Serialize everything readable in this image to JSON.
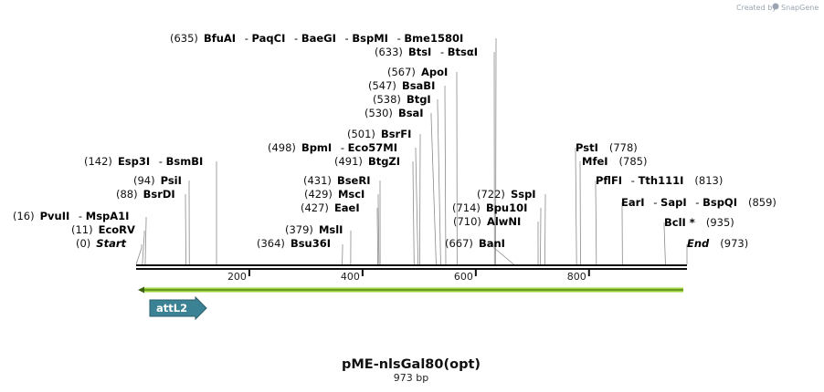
{
  "header": {
    "credit": "Created by",
    "brand": "SnapGene"
  },
  "plasmid": {
    "name": "pME-nlsGal80(opt)",
    "length_label": "973 bp",
    "length": 973
  },
  "ruler": {
    "ticks": [
      "200",
      "400",
      "600",
      "800"
    ]
  },
  "features": [
    {
      "name": "attL2",
      "start": 25,
      "end": 135,
      "direction": "forward",
      "color": "#3c8295"
    }
  ],
  "primer_arrow": {
    "direction": "reverse",
    "color": "#9bd43b"
  },
  "sites": [
    {
      "pos_label": "(0)",
      "names": [
        "Start"
      ],
      "italic": true
    },
    {
      "pos_label": "(11)",
      "names": [
        "EcoRV"
      ]
    },
    {
      "pos_label": "(16)",
      "names": [
        "PvuII",
        "MspA1I"
      ]
    },
    {
      "pos_label": "(88)",
      "names": [
        "BsrDI"
      ]
    },
    {
      "pos_label": "(94)",
      "names": [
        "PsiI"
      ]
    },
    {
      "pos_label": "(142)",
      "names": [
        "Esp3I",
        "BsmBI"
      ]
    },
    {
      "pos_label": "(364)",
      "names": [
        "Bsu36I"
      ]
    },
    {
      "pos_label": "(379)",
      "names": [
        "MslI"
      ]
    },
    {
      "pos_label": "(427)",
      "names": [
        "EaeI"
      ]
    },
    {
      "pos_label": "(429)",
      "names": [
        "MscI"
      ]
    },
    {
      "pos_label": "(431)",
      "names": [
        "BseRI"
      ]
    },
    {
      "pos_label": "(491)",
      "names": [
        "BtgZI"
      ]
    },
    {
      "pos_label": "(498)",
      "names": [
        "BpmI",
        "Eco57MI"
      ]
    },
    {
      "pos_label": "(501)",
      "names": [
        "BsrFI"
      ]
    },
    {
      "pos_label": "(530)",
      "names": [
        "BsaI"
      ]
    },
    {
      "pos_label": "(538)",
      "names": [
        "BtgI"
      ]
    },
    {
      "pos_label": "(547)",
      "names": [
        "BsaBI"
      ]
    },
    {
      "pos_label": "(567)",
      "names": [
        "ApoI"
      ]
    },
    {
      "pos_label": "(633)",
      "names": [
        "BtsI",
        "BtsαI"
      ]
    },
    {
      "pos_label": "(635)",
      "names": [
        "BfuAI",
        "PaqCI",
        "BaeGI",
        "BspMI",
        "Bme1580I"
      ]
    },
    {
      "pos_label": "(667)",
      "names": [
        "BanI"
      ]
    },
    {
      "pos_label": "(710)",
      "names": [
        "AlwNI"
      ]
    },
    {
      "pos_label": "(714)",
      "names": [
        "Bpu10I"
      ]
    },
    {
      "pos_label": "(722)",
      "names": [
        "SspI"
      ]
    },
    {
      "pos_label": "(778)",
      "names": [
        "PstI"
      ]
    },
    {
      "pos_label": "(785)",
      "names": [
        "MfeI"
      ]
    },
    {
      "pos_label": "(813)",
      "names": [
        "PflFI",
        "Tth111I"
      ]
    },
    {
      "pos_label": "(859)",
      "names": [
        "EarI",
        "SapI",
        "BspQI"
      ]
    },
    {
      "pos_label": "(935)",
      "names": [
        "BclI *"
      ]
    },
    {
      "pos_label": "(973)",
      "names": [
        "End"
      ],
      "italic": true
    }
  ]
}
